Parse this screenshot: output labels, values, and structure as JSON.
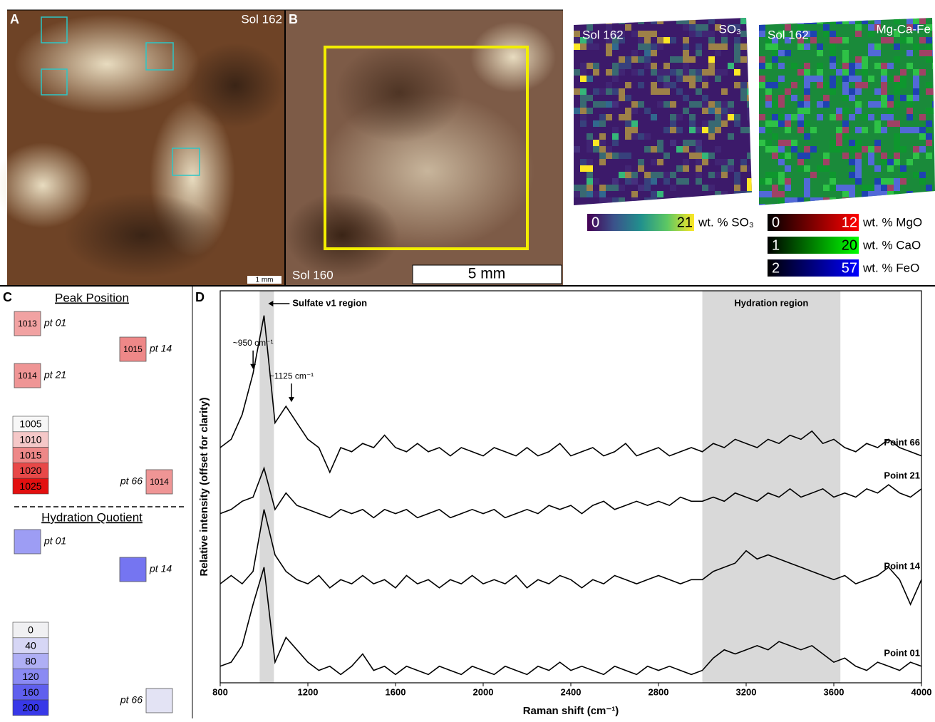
{
  "figure": {
    "panel_a": {
      "label": "A",
      "sol": "Sol 162",
      "scale_bar": "1 mm"
    },
    "panel_b": {
      "label": "B",
      "sol": "Sol 160",
      "scale_bar": "5 mm"
    },
    "maps": [
      {
        "sol": "Sol 162",
        "title": "SO₃",
        "colorbars": [
          {
            "min": 0,
            "max": 21,
            "unit": "wt. % SO₃",
            "colors": [
              "#440154",
              "#3b528b",
              "#21908d",
              "#5dc863",
              "#fde725"
            ]
          }
        ]
      },
      {
        "sol": "Sol 162",
        "title": "Mg-Ca-Fe",
        "colorbars": [
          {
            "min": 0,
            "max": 12,
            "unit": "wt. % MgO",
            "colors": [
              "#000000",
              "#ff0000"
            ]
          },
          {
            "min": 1,
            "max": 20,
            "unit": "wt. % CaO",
            "colors": [
              "#000000",
              "#00ff00"
            ]
          },
          {
            "min": 2,
            "max": 57,
            "unit": "wt. % FeO",
            "colors": [
              "#000000",
              "#0000ff"
            ]
          }
        ]
      }
    ],
    "panel_c": {
      "label": "C",
      "peak_position": {
        "title": "Peak Position",
        "points": [
          {
            "label": "pt 01",
            "value": 1013
          },
          {
            "label": "pt 14",
            "value": 1015
          },
          {
            "label": "pt 21",
            "value": 1014
          },
          {
            "label": "pt 66",
            "value": 1014
          }
        ],
        "scale": [
          {
            "value": 1005,
            "color": "#f7f7f7"
          },
          {
            "value": 1010,
            "color": "#f5c8c8"
          },
          {
            "value": 1015,
            "color": "#ee8888"
          },
          {
            "value": 1020,
            "color": "#e84848"
          },
          {
            "value": 1025,
            "color": "#e31010"
          }
        ]
      },
      "hydration_quotient": {
        "title": "Hydration Quotient",
        "points": [
          {
            "label": "pt 01",
            "value": 100
          },
          {
            "label": "pt 14",
            "value": 140
          },
          {
            "label": "pt 66",
            "value": 20
          }
        ],
        "scale": [
          {
            "value": 0,
            "color": "#f0f0f2"
          },
          {
            "value": 40,
            "color": "#d6d6f5"
          },
          {
            "value": 80,
            "color": "#afaff5"
          },
          {
            "value": 120,
            "color": "#8a8af3"
          },
          {
            "value": 160,
            "color": "#5f5fee"
          },
          {
            "value": 200,
            "color": "#3838e8"
          }
        ]
      }
    }
  },
  "chart_data": {
    "type": "line",
    "panel_label": "D",
    "x_label": "Raman shift (cm⁻¹)",
    "y_label": "Relative intensity (offset for clarity)",
    "xlim": [
      800,
      4000
    ],
    "xticks": [
      800,
      1200,
      1600,
      2000,
      2400,
      2800,
      3200,
      3600,
      4000
    ],
    "ylim": [
      5,
      100
    ],
    "regions": [
      {
        "label": "Sulfate ν1 region",
        "xlim": [
          980,
          1045
        ]
      },
      {
        "label": "Hydration region",
        "xlim": [
          3000,
          3630
        ]
      }
    ],
    "annotations": [
      {
        "label": "~950 cm⁻¹",
        "x": 950
      },
      {
        "label": "~1125 cm⁻¹",
        "x": 1125
      }
    ],
    "x": [
      800,
      850,
      900,
      950,
      1000,
      1050,
      1100,
      1150,
      1200,
      1250,
      1300,
      1350,
      1400,
      1450,
      1500,
      1550,
      1600,
      1650,
      1700,
      1750,
      1800,
      1850,
      1900,
      1950,
      2000,
      2050,
      2100,
      2150,
      2200,
      2250,
      2300,
      2350,
      2400,
      2450,
      2500,
      2550,
      2600,
      2650,
      2700,
      2750,
      2800,
      2850,
      2900,
      2950,
      3000,
      3050,
      3100,
      3150,
      3200,
      3250,
      3300,
      3350,
      3400,
      3450,
      3500,
      3550,
      3600,
      3650,
      3700,
      3750,
      3800,
      3850,
      3900,
      3950,
      4000
    ],
    "series": [
      {
        "name": "Point 66",
        "color": "#000000",
        "values": [
          62,
          64,
          70,
          80,
          94,
          68,
          72,
          68,
          64,
          62,
          56,
          62,
          61,
          63,
          62,
          65,
          62,
          61,
          63,
          61,
          62,
          60,
          62,
          61,
          60,
          62,
          61,
          60,
          62,
          60,
          61,
          63,
          60,
          61,
          62,
          60,
          61,
          63,
          60,
          61,
          62,
          60,
          61,
          62,
          61,
          63,
          62,
          64,
          63,
          62,
          64,
          63,
          65,
          64,
          66,
          63,
          64,
          62,
          61,
          63,
          62,
          64,
          62,
          61,
          60
        ]
      },
      {
        "name": "Point 21",
        "color": "#000000",
        "values": [
          46,
          47,
          49,
          50,
          57,
          47,
          51,
          48,
          47,
          46,
          45,
          47,
          46,
          47,
          45,
          47,
          46,
          47,
          45,
          46,
          47,
          45,
          46,
          47,
          46,
          47,
          45,
          46,
          47,
          46,
          48,
          47,
          48,
          46,
          48,
          49,
          47,
          48,
          49,
          48,
          49,
          48,
          50,
          49,
          49,
          50,
          49,
          51,
          50,
          49,
          51,
          50,
          52,
          50,
          51,
          52,
          50,
          51,
          50,
          52,
          51,
          53,
          51,
          50,
          52
        ]
      },
      {
        "name": "Point 14",
        "color": "#000000",
        "values": [
          29,
          31,
          29,
          32,
          47,
          36,
          32,
          30,
          29,
          31,
          28,
          30,
          29,
          31,
          29,
          30,
          28,
          31,
          29,
          30,
          28,
          30,
          29,
          31,
          29,
          30,
          29,
          31,
          28,
          30,
          29,
          31,
          30,
          28,
          30,
          29,
          31,
          30,
          29,
          30,
          31,
          30,
          29,
          30,
          30,
          32,
          33,
          34,
          37,
          35,
          36,
          35,
          34,
          33,
          32,
          31,
          30,
          31,
          29,
          30,
          31,
          33,
          30,
          24,
          30
        ]
      },
      {
        "name": "Point 01",
        "color": "#000000",
        "values": [
          9,
          10,
          14,
          24,
          33,
          10,
          16,
          13,
          10,
          8,
          9,
          7,
          9,
          12,
          8,
          9,
          7,
          9,
          8,
          7,
          9,
          8,
          7,
          9,
          8,
          7,
          9,
          8,
          7,
          9,
          8,
          10,
          8,
          9,
          8,
          7,
          9,
          8,
          7,
          9,
          8,
          9,
          8,
          7,
          8,
          11,
          13,
          12,
          13,
          14,
          13,
          15,
          14,
          13,
          14,
          12,
          10,
          11,
          9,
          8,
          10,
          9,
          8,
          10,
          9
        ]
      }
    ]
  }
}
